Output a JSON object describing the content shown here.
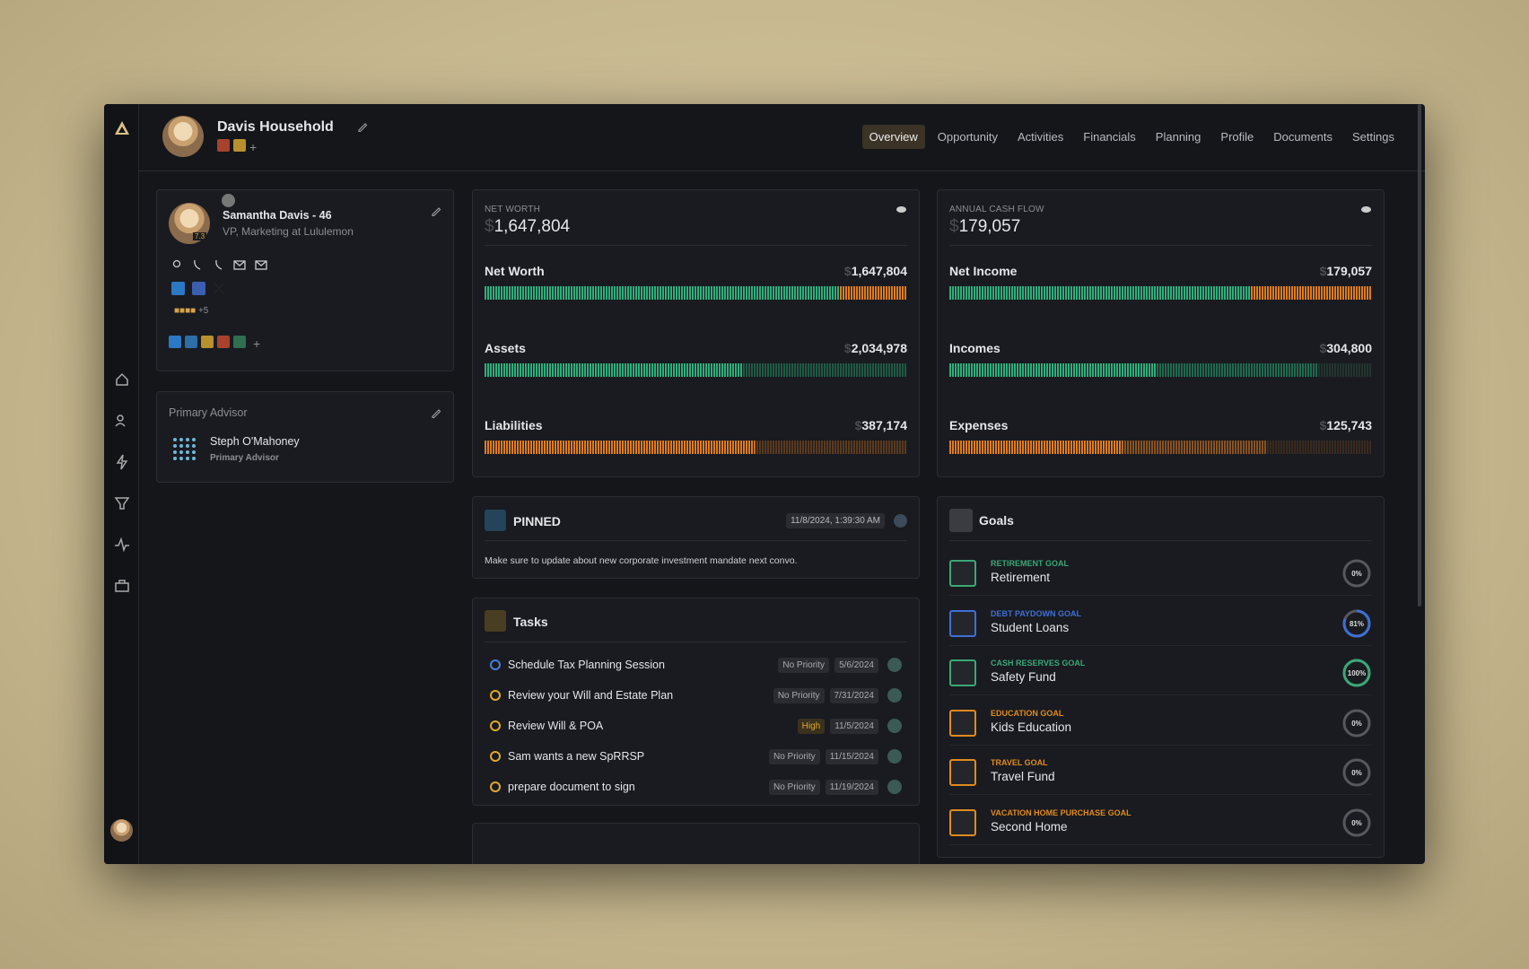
{
  "header": {
    "title": "Davis Household",
    "tabs": [
      "Overview",
      "Opportunity",
      "Activities",
      "Financials",
      "Planning",
      "Profile",
      "Documents",
      "Settings"
    ]
  },
  "profile": {
    "name": "Samantha Davis - 46",
    "role": "VP, Marketing at Lululemon",
    "score": "7.3",
    "more": "+5"
  },
  "advisor": {
    "heading": "Primary Advisor",
    "name": "Steph O'Mahoney",
    "role": "Primary Advisor"
  },
  "currency": "$",
  "net_worth": {
    "label": "NET WORTH",
    "total": "1,647,804",
    "rows": [
      {
        "label": "Net Worth",
        "value": "1,647,804"
      },
      {
        "label": "Assets",
        "value": "2,034,978"
      },
      {
        "label": "Liabilities",
        "value": "387,174"
      }
    ]
  },
  "cash_flow": {
    "label": "ANNUAL CASH FLOW",
    "total": "179,057",
    "rows": [
      {
        "label": "Net Income",
        "value": "179,057"
      },
      {
        "label": "Incomes",
        "value": "304,800"
      },
      {
        "label": "Expenses",
        "value": "125,743"
      }
    ]
  },
  "pinned": {
    "title": "PINNED",
    "timestamp": "11/8/2024, 1:39:30 AM",
    "note": "Make sure to update about new corporate investment mandate next convo."
  },
  "tasks": {
    "title": "Tasks",
    "items": [
      {
        "title": "Schedule Tax Planning Session",
        "priority": "No Priority",
        "date": "5/6/2024",
        "status_color": "#4a7fd8"
      },
      {
        "title": "Review your Will and Estate Plan",
        "priority": "No Priority",
        "date": "7/31/2024",
        "status_color": "#e0a92a"
      },
      {
        "title": "Review Will & POA",
        "priority": "High",
        "date": "11/5/2024",
        "status_color": "#e0a92a"
      },
      {
        "title": "Sam wants a new SpRRSP",
        "priority": "No Priority",
        "date": "11/15/2024",
        "status_color": "#e0a92a"
      },
      {
        "title": "prepare document to sign",
        "priority": "No Priority",
        "date": "11/19/2024",
        "status_color": "#e0a92a"
      }
    ]
  },
  "goals": {
    "title": "Goals",
    "items": [
      {
        "type": "RETIREMENT GOAL",
        "name": "Retirement",
        "progress": "0%",
        "color": "#3aa876"
      },
      {
        "type": "DEBT PAYDOWN GOAL",
        "name": "Student Loans",
        "progress": "81%",
        "color": "#3f6fd6"
      },
      {
        "type": "CASH RESERVES GOAL",
        "name": "Safety Fund",
        "progress": "100%",
        "color": "#3aa876"
      },
      {
        "type": "EDUCATION GOAL",
        "name": "Kids Education",
        "progress": "0%",
        "color": "#e08a1e"
      },
      {
        "type": "TRAVEL GOAL",
        "name": "Travel Fund",
        "progress": "0%",
        "color": "#e08a1e"
      },
      {
        "type": "VACATION HOME PURCHASE GOAL",
        "name": "Second Home",
        "progress": "0%",
        "color": "#e08a1e"
      }
    ]
  }
}
